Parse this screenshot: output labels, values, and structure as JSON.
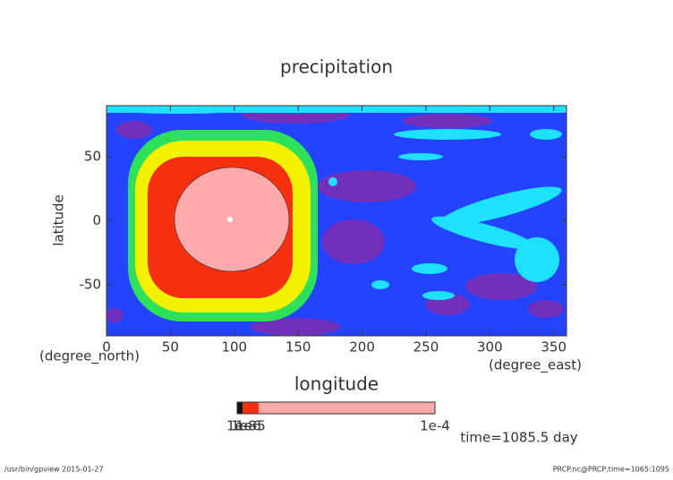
{
  "chart_data": {
    "type": "contour",
    "title": "precipitation",
    "x_label": "longitude",
    "x_unit": "(degree_east)",
    "y_label": "latitude",
    "y_unit": "(degree_north)",
    "xlim": [
      0,
      360
    ],
    "xticks": [
      0,
      50,
      100,
      150,
      200,
      250,
      300,
      350
    ],
    "ylim": [
      -90,
      90
    ],
    "yticks": [
      -50,
      0,
      50
    ],
    "colorbar_labels": [
      "1e-8",
      "1e-6",
      "1e-5",
      "1e-4"
    ],
    "annotation": "time=1085.5 day",
    "footer_left": "/usr/bin/gpview  2015-01-27",
    "footer_right": "PRCP.nc@PRCP,time=1065:1095"
  }
}
